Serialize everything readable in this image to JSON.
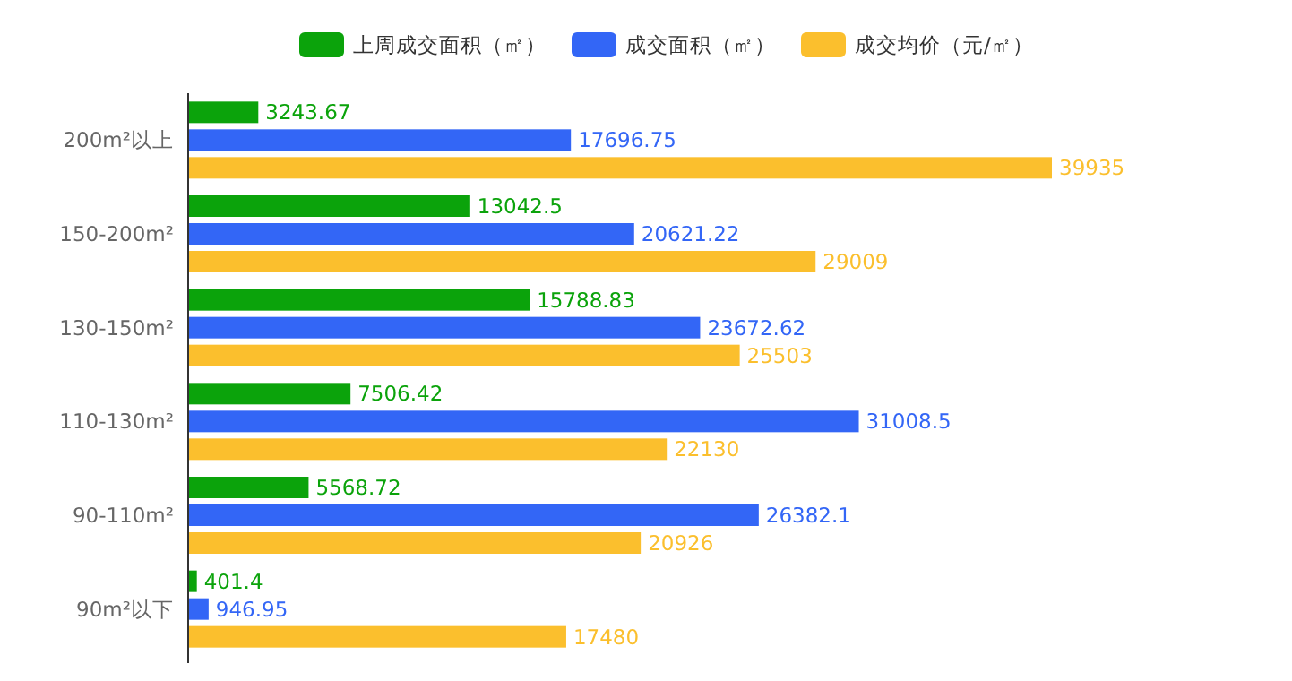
{
  "chart_data": {
    "type": "bar",
    "orientation": "horizontal",
    "data_labels": true,
    "legend": "top",
    "categories": [
      "200m²以上",
      "150-200m²",
      "130-150m²",
      "110-130m²",
      "90-110m²",
      "90m²以下"
    ],
    "series": [
      {
        "name": "上周成交面积（㎡）",
        "color": "#0ba30b",
        "values": [
          3243.67,
          13042.5,
          15788.83,
          7506.42,
          5568.72,
          401.4
        ]
      },
      {
        "name": "成交面积（㎡）",
        "color": "#3366f6",
        "values": [
          17696.75,
          20621.22,
          23672.62,
          31008.5,
          26382.1,
          946.95
        ]
      },
      {
        "name": "成交均价（元/㎡）",
        "color": "#fbbf2d",
        "values": [
          39935,
          29009,
          25503,
          22130,
          20926,
          17480
        ]
      }
    ]
  }
}
